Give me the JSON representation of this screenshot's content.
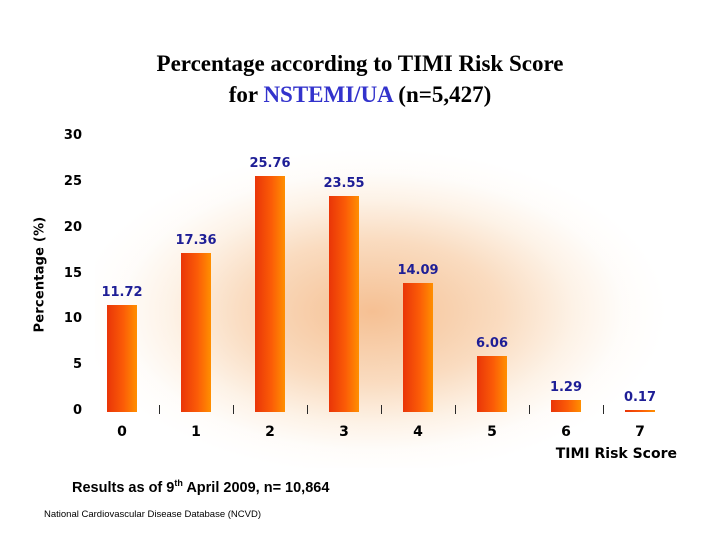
{
  "title": {
    "line1": "Percentage according to TIMI Risk Score",
    "line2_prefix": "for ",
    "line2_highlight": "NSTEMI/UA",
    "line2_suffix": " (n=5,427)"
  },
  "chart_data": {
    "type": "bar",
    "categories": [
      "0",
      "1",
      "2",
      "3",
      "4",
      "5",
      "6",
      "7"
    ],
    "values": [
      11.72,
      17.36,
      25.76,
      23.55,
      14.09,
      6.06,
      1.29,
      0.17
    ],
    "data_labels": [
      "11.72",
      "17.36",
      "25.76",
      "23.55",
      "14.09",
      "6.06",
      "1.29",
      "0.17"
    ],
    "xlabel": "TIMI Risk Score",
    "ylabel": "Percentage (%)",
    "ylim": [
      0,
      30
    ],
    "yticks": [
      30,
      25,
      20,
      15,
      10,
      5,
      0
    ],
    "grid": false,
    "legend": "none",
    "bar_gradient": [
      "#e93508",
      "#ff8f00"
    ],
    "data_label_color": "#1e1e96",
    "glow_color": "#f3b078"
  },
  "footer": {
    "results_prefix": "Results as of 9",
    "results_sup": "th",
    "results_suffix": " April 2009, n= 10,864",
    "source": "National Cardiovascular Disease Database (NCVD)"
  },
  "colors": {
    "title_text": "#000000",
    "title_highlight": "#3333cc",
    "axis_text": "#000000"
  }
}
